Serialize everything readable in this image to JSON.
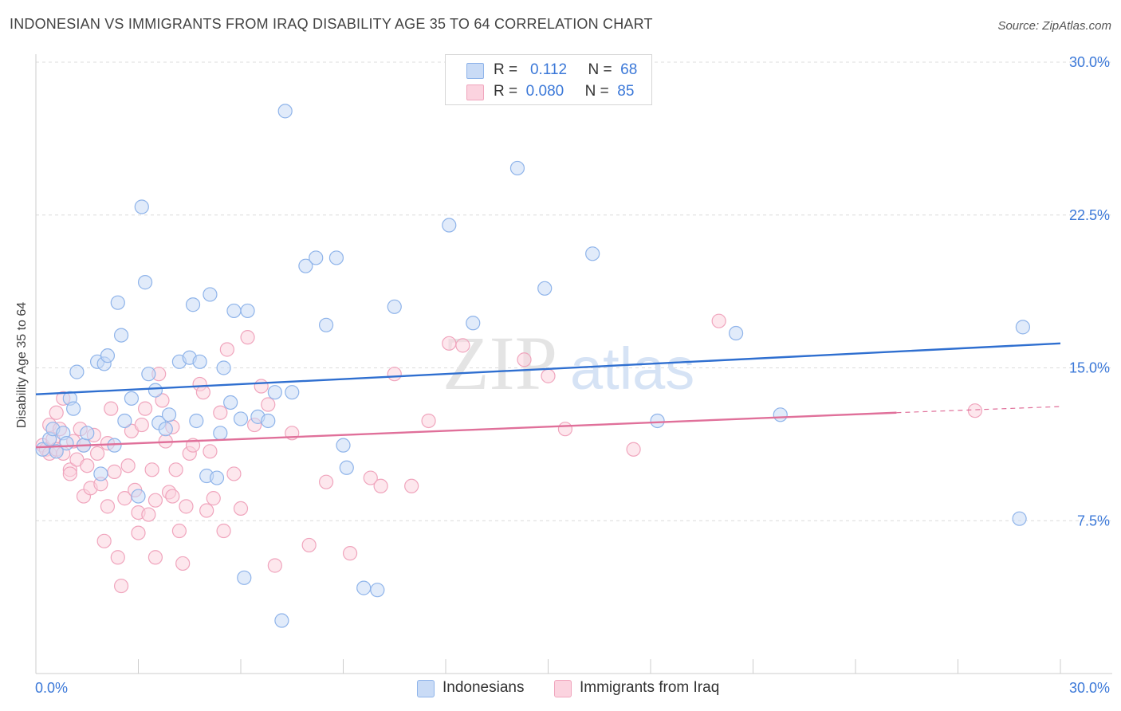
{
  "title": "INDONESIAN VS IMMIGRANTS FROM IRAQ DISABILITY AGE 35 TO 64 CORRELATION CHART",
  "source": "Source: ZipAtlas.com",
  "watermark": {
    "zip": "ZIP",
    "atlas": "atlas"
  },
  "legend": {
    "rows": [
      {
        "r_label": "R =",
        "r_value": "0.112",
        "n_label": "N =",
        "n_value": "68"
      },
      {
        "r_label": "R =",
        "r_value": "0.080",
        "n_label": "N =",
        "n_value": "85"
      }
    ]
  },
  "chart_data": {
    "type": "scatter",
    "title": "INDONESIAN VS IMMIGRANTS FROM IRAQ DISABILITY AGE 35 TO 64 CORRELATION CHART",
    "xlabel": "",
    "ylabel": "Disability Age 35 to 64",
    "xlim": [
      0,
      30
    ],
    "ylim": [
      0,
      30
    ],
    "x_tick_labels": [
      "0.0%",
      "30.0%"
    ],
    "y_ticks": [
      7.5,
      15.0,
      22.5,
      30.0
    ],
    "y_tick_labels": [
      "7.5%",
      "15.0%",
      "22.5%",
      "30.0%"
    ],
    "grid": true,
    "legend_position": "top-center",
    "series": [
      {
        "name": "Indonesians",
        "color": "#8fb4ea",
        "edge": "#5b8fd6",
        "line_color": "#2f6fd0",
        "trend": {
          "x": [
            0,
            30
          ],
          "y": [
            13.7,
            16.2
          ]
        },
        "x": [
          0.2,
          0.4,
          0.5,
          0.6,
          0.8,
          0.9,
          1.0,
          1.1,
          1.2,
          1.4,
          1.5,
          1.8,
          1.9,
          2.0,
          2.1,
          2.3,
          2.4,
          2.5,
          2.6,
          2.8,
          3.0,
          3.1,
          3.2,
          3.3,
          3.5,
          3.6,
          3.8,
          3.9,
          4.2,
          4.5,
          4.6,
          4.7,
          4.8,
          5.0,
          5.1,
          5.3,
          5.4,
          5.5,
          5.7,
          5.8,
          6.0,
          6.1,
          6.2,
          6.5,
          6.8,
          7.0,
          7.2,
          7.3,
          7.5,
          7.9,
          8.2,
          8.5,
          8.8,
          9.0,
          9.1,
          9.6,
          10.0,
          10.5,
          12.1,
          12.8,
          14.1,
          14.9,
          16.3,
          18.2,
          20.5,
          21.8,
          28.8,
          28.9
        ],
        "y": [
          11.0,
          11.5,
          12.0,
          10.9,
          11.8,
          11.3,
          13.5,
          13.0,
          14.8,
          11.2,
          11.8,
          15.3,
          9.8,
          15.2,
          15.6,
          11.2,
          18.2,
          16.6,
          12.4,
          13.5,
          8.7,
          22.9,
          19.2,
          14.7,
          13.9,
          12.3,
          12.0,
          12.7,
          15.3,
          15.5,
          18.1,
          12.4,
          15.3,
          9.7,
          18.6,
          9.6,
          11.8,
          15.0,
          13.3,
          17.8,
          12.5,
          4.7,
          17.8,
          12.6,
          12.4,
          13.8,
          2.6,
          27.6,
          13.8,
          20.0,
          20.4,
          17.1,
          20.4,
          11.2,
          10.1,
          4.2,
          4.1,
          18.0,
          22.0,
          17.2,
          24.8,
          18.9,
          20.6,
          12.4,
          16.7,
          12.7,
          7.6,
          17.0
        ],
        "highlight": []
      },
      {
        "name": "Immigrants from Iraq",
        "color": "#f4a8c0",
        "edge": "#e27ea0",
        "line_color": "#e0709a",
        "trend": {
          "x": [
            0,
            25.2
          ],
          "y": [
            11.1,
            12.8
          ]
        },
        "trend_dashed": {
          "x": [
            25.2,
            30
          ],
          "y": [
            12.8,
            13.1
          ]
        },
        "x": [
          0.2,
          0.3,
          0.4,
          0.4,
          0.5,
          0.6,
          0.6,
          0.7,
          0.8,
          0.8,
          1.0,
          1.0,
          1.1,
          1.2,
          1.3,
          1.4,
          1.4,
          1.5,
          1.6,
          1.7,
          1.8,
          1.9,
          2.0,
          2.1,
          2.1,
          2.2,
          2.3,
          2.4,
          2.5,
          2.6,
          2.7,
          2.8,
          2.9,
          3.0,
          3.0,
          3.1,
          3.2,
          3.3,
          3.4,
          3.5,
          3.5,
          3.6,
          3.7,
          3.8,
          3.9,
          4.0,
          4.0,
          4.1,
          4.2,
          4.3,
          4.4,
          4.5,
          4.6,
          4.8,
          4.9,
          5.0,
          5.1,
          5.2,
          5.4,
          5.5,
          5.6,
          5.8,
          6.0,
          6.2,
          6.4,
          6.6,
          6.8,
          7.0,
          7.5,
          8.0,
          8.5,
          9.2,
          9.8,
          10.1,
          10.5,
          11.0,
          11.5,
          12.1,
          12.5,
          14.3,
          15.0,
          15.5,
          17.5,
          20.0,
          27.5
        ],
        "y": [
          11.2,
          11.0,
          12.2,
          10.8,
          11.5,
          11.0,
          12.8,
          12.0,
          13.5,
          10.8,
          10.0,
          9.8,
          11.4,
          10.5,
          12.0,
          11.2,
          8.7,
          10.2,
          9.1,
          11.7,
          10.8,
          9.3,
          6.5,
          8.2,
          11.3,
          13.0,
          9.9,
          5.7,
          4.3,
          8.6,
          10.2,
          11.9,
          9.0,
          6.9,
          7.9,
          12.2,
          13.0,
          7.8,
          10.0,
          5.7,
          8.5,
          14.7,
          13.4,
          11.4,
          8.9,
          12.1,
          8.7,
          10.0,
          7.0,
          5.4,
          8.2,
          10.8,
          11.2,
          14.2,
          13.8,
          8.0,
          10.9,
          8.6,
          12.8,
          7.0,
          15.9,
          9.8,
          8.1,
          16.5,
          12.2,
          14.1,
          13.2,
          5.3,
          11.8,
          6.3,
          9.4,
          5.9,
          9.6,
          9.2,
          14.7,
          9.2,
          12.4,
          16.2,
          16.1,
          15.4,
          14.6,
          12.0,
          11.0,
          17.3,
          12.9
        ],
        "highlight": []
      }
    ]
  },
  "colors": {
    "blue_fill": "#c9dbf6",
    "blue_edge": "#8fb4ea",
    "pink_fill": "#fbd3df",
    "pink_edge": "#f0a5bd",
    "axis_text": "#3b78d8",
    "grid": "#dddddd"
  }
}
